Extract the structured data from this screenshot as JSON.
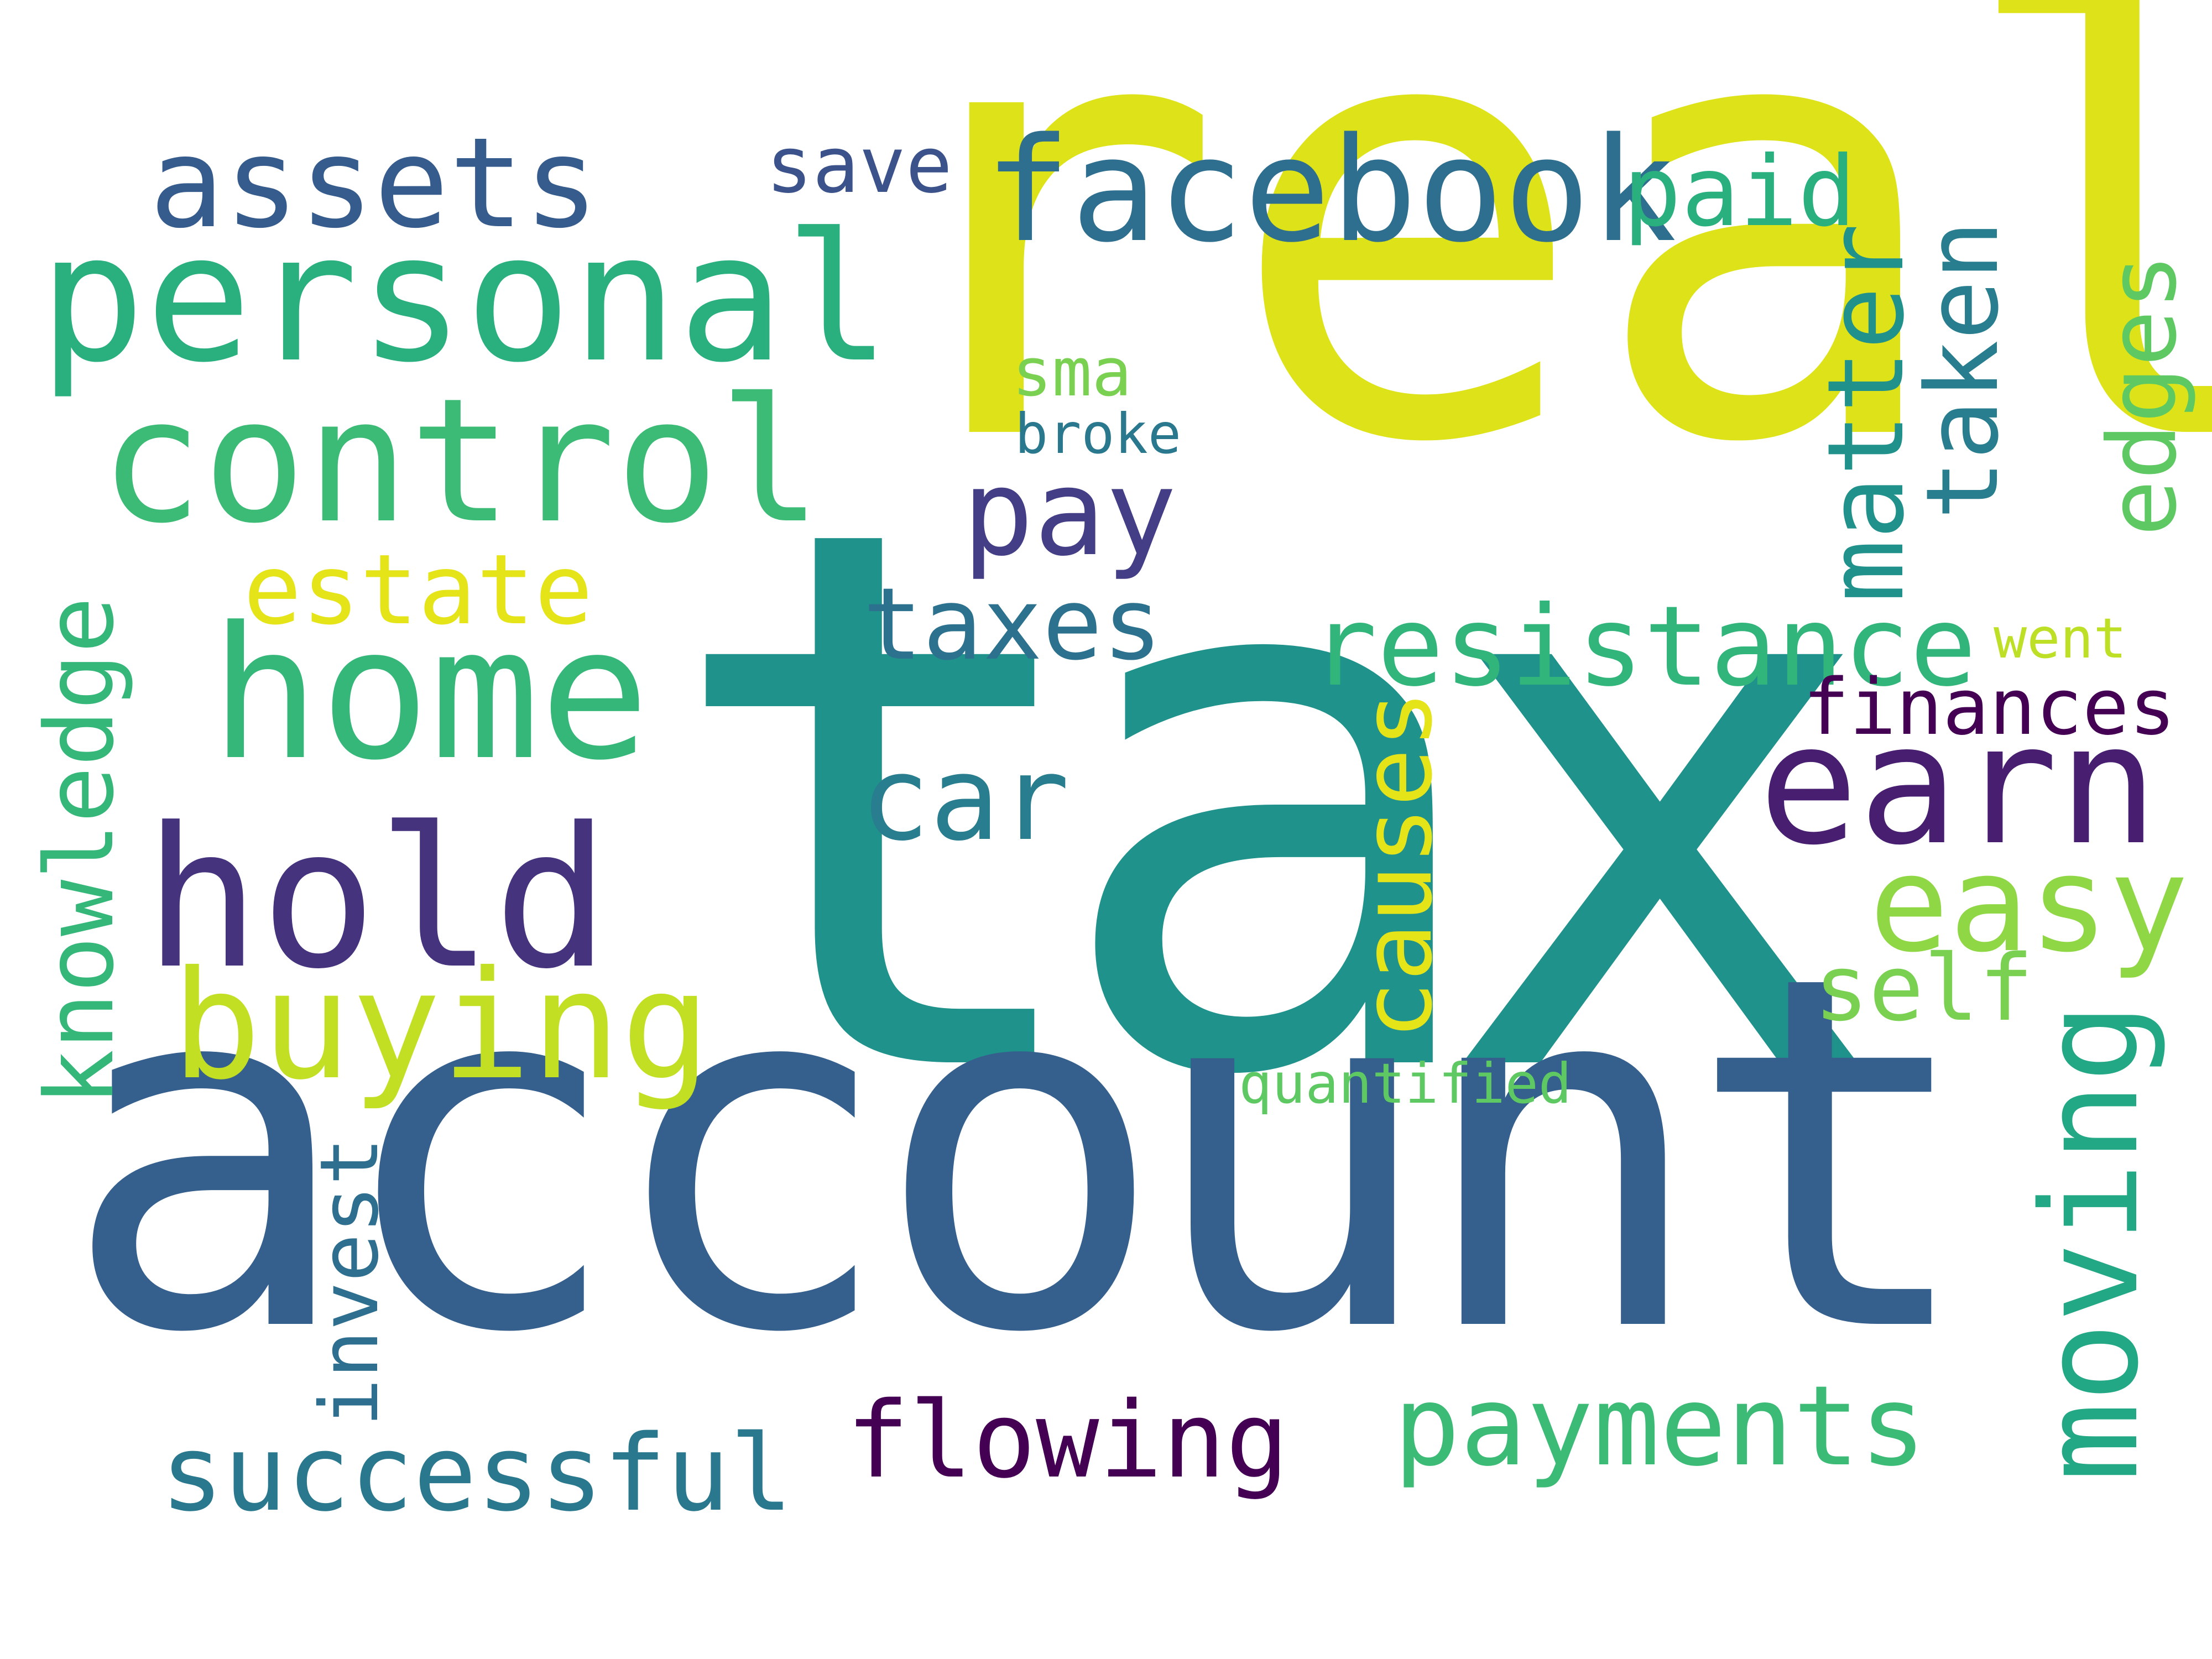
{
  "words": [
    {
      "key": "real",
      "text": "real",
      "color": "#dde318"
    },
    {
      "key": "tax",
      "text": "tax",
      "color": "#20928c"
    },
    {
      "key": "account",
      "text": "account",
      "color": "#35608d"
    },
    {
      "key": "personal",
      "text": "personal",
      "color": "#2ab07f"
    },
    {
      "key": "control",
      "text": "control",
      "color": "#3bbb75"
    },
    {
      "key": "assets",
      "text": "assets",
      "color": "#365c8d"
    },
    {
      "key": "facebook",
      "text": "facebook",
      "color": "#2e6e8e"
    },
    {
      "key": "save",
      "text": "save",
      "color": "#3b528b"
    },
    {
      "key": "paid",
      "text": "paid",
      "color": "#2ab07f"
    },
    {
      "key": "home",
      "text": "home",
      "color": "#35b779"
    },
    {
      "key": "hold",
      "text": "hold",
      "color": "#46337e"
    },
    {
      "key": "buying",
      "text": "buying",
      "color": "#c2df23"
    },
    {
      "key": "estate",
      "text": "estate",
      "color": "#e5e419"
    },
    {
      "key": "pay",
      "text": "pay",
      "color": "#433e85"
    },
    {
      "key": "taxes",
      "text": "taxes",
      "color": "#2c718e"
    },
    {
      "key": "car",
      "text": "car",
      "color": "#287d8e"
    },
    {
      "key": "sma",
      "text": "sma",
      "color": "#7ad151"
    },
    {
      "key": "broke",
      "text": "broke",
      "color": "#2a788e"
    },
    {
      "key": "resistance",
      "text": "resistance",
      "color": "#31b57b"
    },
    {
      "key": "went",
      "text": "went",
      "color": "#bddf26"
    },
    {
      "key": "earn",
      "text": "earn",
      "color": "#481f70"
    },
    {
      "key": "finances",
      "text": "finances",
      "color": "#440154"
    },
    {
      "key": "easy",
      "text": "easy",
      "color": "#8fd744"
    },
    {
      "key": "self",
      "text": "self",
      "color": "#7ad151"
    },
    {
      "key": "quantified",
      "text": "quantified",
      "color": "#5ec962"
    },
    {
      "key": "flowing",
      "text": "flowing",
      "color": "#440154"
    },
    {
      "key": "payments",
      "text": "payments",
      "color": "#3bbb75"
    },
    {
      "key": "successful",
      "text": "successful",
      "color": "#2a788e"
    },
    {
      "key": "knowledge",
      "text": "knowledge",
      "color": "#35b779",
      "orientation": "vertical"
    },
    {
      "key": "invest",
      "text": "invest",
      "color": "#2e6e8e",
      "orientation": "vertical"
    },
    {
      "key": "matter",
      "text": "matter",
      "color": "#21918c",
      "orientation": "vertical"
    },
    {
      "key": "taken",
      "text": "taken",
      "color": "#287d8e",
      "orientation": "vertical"
    },
    {
      "key": "edges",
      "text": "edges",
      "color": "#5ec962",
      "orientation": "vertical"
    },
    {
      "key": "causes",
      "text": "causes",
      "color": "#e5e419",
      "orientation": "vertical"
    },
    {
      "key": "moving",
      "text": "moving",
      "color": "#22a884",
      "orientation": "vertical"
    }
  ]
}
